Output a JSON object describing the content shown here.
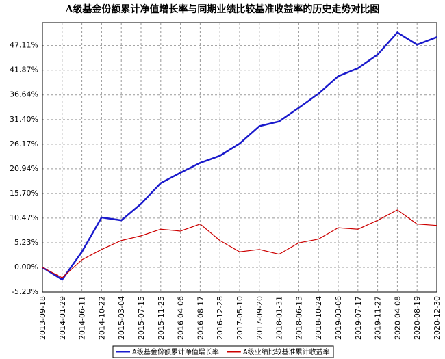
{
  "chart_data": {
    "type": "line",
    "title": "A级基金份额累计净值增长率与同期业绩比较基准收益率的历史走势对比图",
    "x": [
      "2013-09-18",
      "2014-01-29",
      "2014-06-11",
      "2014-10-22",
      "2015-03-04",
      "2015-07-15",
      "2015-11-25",
      "2016-04-06",
      "2016-08-17",
      "2016-12-28",
      "2017-05-10",
      "2017-09-20",
      "2018-01-31",
      "2018-06-13",
      "2018-10-24",
      "2019-03-06",
      "2019-07-17",
      "2019-11-27",
      "2020-04-08",
      "2020-08-19",
      "2020-12-30"
    ],
    "series": [
      {
        "name": "A级基金份额累计净值增长率",
        "color": "#1a1acc",
        "values": [
          0,
          -2.6,
          3.3,
          10.6,
          10.0,
          13.5,
          17.9,
          20.1,
          22.2,
          23.7,
          26.3,
          30.0,
          31.0,
          33.9,
          36.9,
          40.6,
          42.3,
          45.2,
          49.9,
          47.3,
          48.9
        ]
      },
      {
        "name": "A级业绩比较基准累计收益率",
        "color": "#cc0000",
        "values": [
          0,
          -2.2,
          1.6,
          3.8,
          5.7,
          6.7,
          8.1,
          7.7,
          9.2,
          5.7,
          3.3,
          3.8,
          2.8,
          5.2,
          6.0,
          8.4,
          8.1,
          10.0,
          12.2,
          9.2,
          8.9
        ]
      }
    ],
    "ylim": [
      -5.23,
      52.0
    ],
    "yticks": [
      {
        "value": -5.23,
        "label": "-5.23%"
      },
      {
        "value": 0,
        "label": "0.00%"
      },
      {
        "value": 5.23,
        "label": "5.23%"
      },
      {
        "value": 10.47,
        "label": "10.47%"
      },
      {
        "value": 15.7,
        "label": "15.70%"
      },
      {
        "value": 20.94,
        "label": "20.94%"
      },
      {
        "value": 26.17,
        "label": "26.17%"
      },
      {
        "value": 31.4,
        "label": "31.40%"
      },
      {
        "value": 36.64,
        "label": "36.64%"
      },
      {
        "value": 41.87,
        "label": "41.87%"
      },
      {
        "value": 47.11,
        "label": "47.11%"
      }
    ],
    "grid": true
  }
}
